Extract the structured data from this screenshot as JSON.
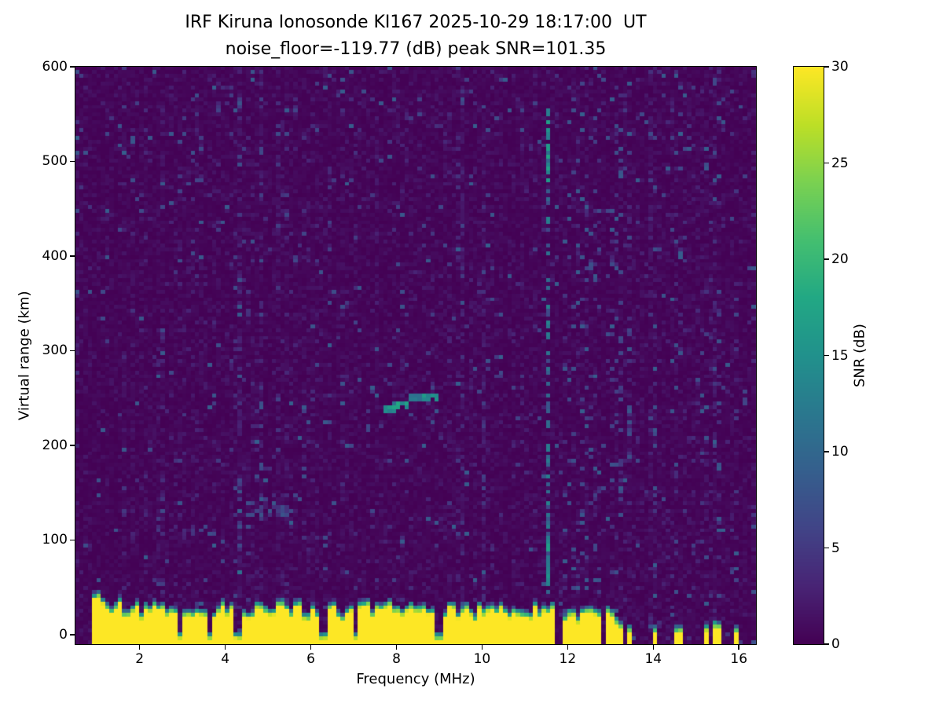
{
  "chart_data": {
    "type": "heatmap",
    "title": "IRF Kiruna Ionosonde KI167 2025-10-29 18:17:00  UT",
    "subtitle": "noise_floor=-119.77 (dB) peak SNR=101.35",
    "xlabel": "Frequency (MHz)",
    "ylabel": "Virtual range (km)",
    "colorbar_label": "SNR (dB)",
    "colormap": "viridis",
    "x_range_mhz": [
      0.5,
      16.4
    ],
    "y_range_km": [
      -10,
      600
    ],
    "snr_range_db": [
      0,
      30
    ],
    "x_ticks": [
      2,
      4,
      6,
      8,
      10,
      12,
      14,
      16
    ],
    "y_ticks": [
      0,
      100,
      200,
      300,
      400,
      500,
      600
    ],
    "colorbar_ticks": [
      0,
      5,
      10,
      15,
      20,
      25,
      30
    ],
    "noise_floor_db": -119.77,
    "peak_snr_db": 101.35,
    "sweep_start_mhz": 0.93,
    "continuous_sweep_end_mhz": 11.72,
    "ground_clutter": {
      "snr_db": 30,
      "top_km_min": 22,
      "top_km_max": 40,
      "gradient_km": 9,
      "notch_freqs_mhz": [
        2.95,
        3.65,
        4.3,
        6.3,
        7.05,
        9.0
      ]
    },
    "sparse_sweep_freqs_mhz": [
      11.92,
      12.04,
      12.17,
      12.3,
      12.44,
      12.6,
      12.77,
      12.95,
      13.1,
      13.24,
      13.46,
      14.09,
      14.6,
      15.26,
      15.5,
      15.95
    ],
    "echo_traces": [
      {
        "f_start_mhz": 7.65,
        "f_end_mhz": 8.3,
        "range_km": 238,
        "slope_km_per_mhz": 8,
        "thickness_km": 9,
        "snr_db": 15
      },
      {
        "f_start_mhz": 8.3,
        "f_end_mhz": 8.95,
        "range_km": 250,
        "slope_km_per_mhz": -2,
        "thickness_km": 8,
        "snr_db": 13
      }
    ],
    "faint_traces": [
      {
        "f_start_mhz": 4.55,
        "f_end_mhz": 5.5,
        "range_km": 132,
        "thickness_km": 16,
        "snr_db": 6,
        "density": 0.3
      },
      {
        "f_start_mhz": 4.85,
        "f_end_mhz": 5.3,
        "range_km": 173,
        "thickness_km": 12,
        "snr_db": 5,
        "density": 0.3
      },
      {
        "f_start_mhz": 2.95,
        "f_end_mhz": 3.85,
        "range_km": 110,
        "thickness_km": 10,
        "snr_db": 5,
        "density": 0.25
      },
      {
        "f_start_mhz": 2.3,
        "f_end_mhz": 2.8,
        "range_km": 106,
        "thickness_km": 8,
        "snr_db": 4,
        "density": 0.22
      }
    ],
    "rfi_columns": [
      {
        "f_mhz": 11.55,
        "range_start_km": 40,
        "range_end_km": 565,
        "snr_db": 9,
        "density": 0.5,
        "bright_segments_km": [
          [
            480,
            555
          ],
          [
            55,
            100
          ]
        ]
      }
    ],
    "noise": {
      "mean_db": 0.6,
      "speckle_prob": 0.022,
      "speckle_db_min": 3,
      "speckle_db_max": 9
    }
  }
}
